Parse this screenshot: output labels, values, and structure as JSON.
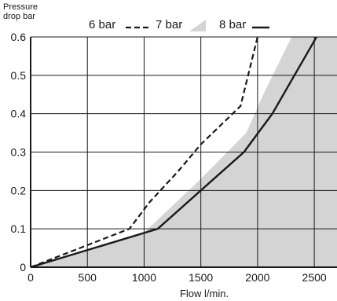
{
  "chart_data": {
    "type": "line",
    "ylabel": [
      "Pressure",
      "drop bar"
    ],
    "xlabel": "Flow l/min.",
    "xlim": [
      0,
      2700
    ],
    "ylim": [
      0,
      0.6
    ],
    "x_ticks": [
      "0",
      "500",
      "1000",
      "1500",
      "2000",
      "2500"
    ],
    "y_ticks": [
      "0",
      "0.1",
      "0.2",
      "0.3",
      "0.4",
      "0.5",
      "0.6"
    ],
    "grid": true,
    "legend": "top",
    "series": [
      {
        "name": "6 bar",
        "style": "dashed",
        "color": "#1a1a1a",
        "points": [
          [
            0,
            0
          ],
          [
            870,
            0.1
          ],
          [
            1050,
            0.17
          ],
          [
            1300,
            0.25
          ],
          [
            1500,
            0.32
          ],
          [
            1850,
            0.42
          ],
          [
            2000,
            0.6
          ]
        ]
      },
      {
        "name": "7 bar",
        "style": "area",
        "color": "#d4d4d4",
        "points": [
          [
            0,
            0
          ],
          [
            1000,
            0.09
          ],
          [
            1500,
            0.23
          ],
          [
            1900,
            0.35
          ],
          [
            2050,
            0.45
          ],
          [
            2300,
            0.6
          ]
        ]
      },
      {
        "name": "8 bar",
        "style": "solid",
        "color": "#1a1a1a",
        "points": [
          [
            0,
            0
          ],
          [
            1120,
            0.1
          ],
          [
            1500,
            0.2
          ],
          [
            1880,
            0.3
          ],
          [
            2130,
            0.4
          ],
          [
            2520,
            0.6
          ]
        ]
      }
    ]
  }
}
